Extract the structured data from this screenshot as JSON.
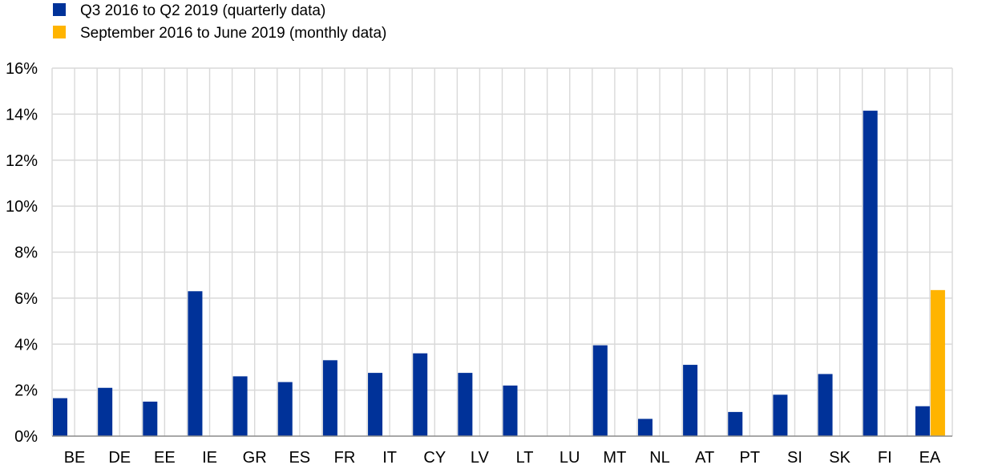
{
  "chart_data": {
    "type": "bar",
    "categories": [
      "BE",
      "DE",
      "EE",
      "IE",
      "GR",
      "ES",
      "FR",
      "IT",
      "CY",
      "LV",
      "LT",
      "LU",
      "MT",
      "NL",
      "AT",
      "PT",
      "SI",
      "SK",
      "FI",
      "EA"
    ],
    "series": [
      {
        "name": "Q3 2016 to Q2 2019 (quarterly data)",
        "color": "#003299",
        "values": [
          1.65,
          2.1,
          1.5,
          6.3,
          2.6,
          2.35,
          3.3,
          2.75,
          3.6,
          2.75,
          2.2,
          null,
          3.95,
          0.75,
          3.1,
          1.05,
          1.8,
          2.7,
          14.15,
          1.3
        ]
      },
      {
        "name": "September 2016 to June 2019 (monthly data)",
        "color": "#FFB400",
        "values": [
          null,
          null,
          null,
          null,
          null,
          null,
          null,
          null,
          null,
          null,
          null,
          null,
          null,
          null,
          null,
          null,
          null,
          null,
          null,
          6.35
        ]
      }
    ],
    "ylim": [
      0,
      16
    ],
    "yticks": [
      0,
      2,
      4,
      6,
      8,
      10,
      12,
      14,
      16
    ],
    "ytick_labels": [
      "0%",
      "2%",
      "4%",
      "6%",
      "8%",
      "10%",
      "12%",
      "14%",
      "16%"
    ],
    "grid": true,
    "legend_position": "top-left"
  }
}
